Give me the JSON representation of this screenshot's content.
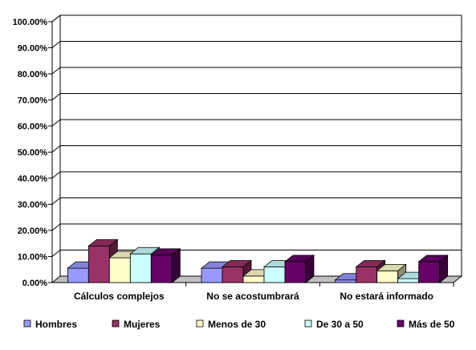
{
  "chart_data": {
    "type": "bar",
    "categories": [
      "Cálculos complejos",
      "No se acostumbrará",
      "No estará informado"
    ],
    "series": [
      {
        "name": "Hombres",
        "values": [
          5.5,
          5.5,
          1.0
        ],
        "color": "#9999ff"
      },
      {
        "name": "Mujeres",
        "values": [
          14.0,
          6.0,
          6.0
        ],
        "color": "#993366"
      },
      {
        "name": "Menos de 30",
        "values": [
          9.5,
          2.5,
          4.5
        ],
        "color": "#ffffcc"
      },
      {
        "name": "De 30 a 50",
        "values": [
          11.0,
          6.0,
          1.5
        ],
        "color": "#ccffff"
      },
      {
        "name": "Más de 50",
        "values": [
          10.5,
          8.0,
          8.0
        ],
        "color": "#660066"
      }
    ],
    "ylim": [
      0,
      100
    ],
    "yticks": [
      "0.00%",
      "10.00%",
      "20.00%",
      "30.00%",
      "40.00%",
      "50.00%",
      "60.00%",
      "70.00%",
      "80.00%",
      "90.00%",
      "100.00%"
    ],
    "grid": true,
    "three_d": true,
    "legend_position": "bottom",
    "colors": {
      "background": "#ffffff",
      "floor": "#c0c0c0",
      "grid": "#000000"
    }
  }
}
